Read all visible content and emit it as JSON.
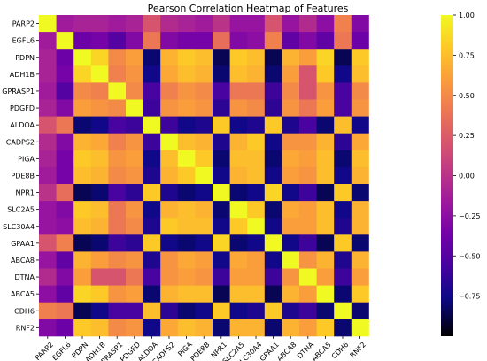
{
  "chart_data": {
    "type": "heatmap",
    "title": "Pearson Correlation Heatmap of Features",
    "xlabel": "",
    "ylabel": "",
    "labels": [
      "PARP2",
      "EGFL6",
      "PDPN",
      "ADH1B",
      "GPRASP1",
      "PDGFD",
      "ALDOA",
      "CADPS2",
      "PIGA",
      "PDE8B",
      "NPR1",
      "SLC2A5",
      "SLC30A4",
      "GPAA1",
      "ABCA8",
      "DTNA",
      "ABCA5",
      "CDH6",
      "RNF2"
    ],
    "colorbar": {
      "range": [
        -1.0,
        1.0
      ],
      "ticks": [
        "1.00",
        "0.75",
        "0.50",
        "0.25",
        "0.00",
        "−0.25",
        "−0.50",
        "−0.75"
      ],
      "tick_values": [
        1.0,
        0.75,
        0.5,
        0.25,
        0.0,
        -0.25,
        -0.5,
        -0.75
      ]
    },
    "colormap_stops": [
      "#0d0887",
      "#46039f",
      "#7201a8",
      "#9c179e",
      "#bd3786",
      "#d8576b",
      "#ed7953",
      "#fb9f3a",
      "#fdca26",
      "#f0f921"
    ],
    "colormap_low": "#000000",
    "matrix": [
      [
        1.0,
        -0.15,
        -0.1,
        -0.1,
        -0.15,
        -0.1,
        0.2,
        -0.05,
        -0.1,
        -0.15,
        0.0,
        -0.2,
        -0.2,
        0.2,
        -0.2,
        -0.05,
        -0.25,
        0.45,
        -0.3
      ],
      [
        -0.15,
        1.0,
        -0.4,
        -0.35,
        -0.5,
        -0.3,
        0.4,
        -0.3,
        -0.35,
        -0.35,
        0.35,
        -0.3,
        -0.25,
        0.45,
        -0.45,
        -0.3,
        -0.45,
        0.4,
        -0.4
      ],
      [
        -0.1,
        -0.4,
        1.0,
        0.85,
        0.5,
        0.6,
        -0.8,
        0.7,
        0.8,
        0.75,
        -0.85,
        0.8,
        0.75,
        -0.85,
        0.7,
        0.6,
        0.85,
        -0.85,
        0.8
      ],
      [
        -0.1,
        -0.35,
        0.85,
        1.0,
        0.45,
        0.55,
        -0.75,
        0.65,
        0.75,
        0.7,
        -0.8,
        0.75,
        0.7,
        -0.8,
        0.6,
        0.2,
        0.8,
        -0.75,
        0.75
      ],
      [
        -0.15,
        -0.5,
        0.5,
        0.45,
        1.0,
        0.5,
        -0.55,
        0.45,
        0.55,
        0.5,
        -0.55,
        0.4,
        0.4,
        -0.6,
        0.5,
        0.2,
        0.55,
        -0.55,
        0.5
      ],
      [
        -0.1,
        -0.3,
        0.6,
        0.55,
        0.5,
        1.0,
        -0.6,
        0.55,
        0.6,
        0.55,
        -0.65,
        0.55,
        0.5,
        -0.65,
        0.55,
        0.4,
        0.6,
        -0.55,
        0.55
      ],
      [
        0.2,
        0.4,
        -0.8,
        -0.75,
        -0.55,
        -0.6,
        1.0,
        -0.6,
        -0.75,
        -0.7,
        0.8,
        -0.75,
        -0.7,
        0.8,
        -0.7,
        -0.55,
        -0.8,
        0.75,
        -0.75
      ],
      [
        -0.05,
        -0.3,
        0.7,
        0.65,
        0.45,
        0.55,
        -0.6,
        1.0,
        0.75,
        0.7,
        -0.7,
        0.7,
        0.8,
        -0.75,
        0.55,
        0.55,
        0.7,
        -0.65,
        0.65
      ],
      [
        -0.1,
        -0.35,
        0.8,
        0.75,
        0.55,
        0.6,
        -0.75,
        0.75,
        1.0,
        0.8,
        -0.8,
        0.75,
        0.75,
        -0.8,
        0.65,
        0.6,
        0.75,
        -0.8,
        0.75
      ],
      [
        -0.15,
        -0.35,
        0.75,
        0.7,
        0.5,
        0.55,
        -0.7,
        0.7,
        0.8,
        1.0,
        -0.75,
        0.7,
        0.75,
        -0.75,
        0.6,
        0.55,
        0.75,
        -0.75,
        0.7
      ],
      [
        0.0,
        0.35,
        -0.85,
        -0.8,
        -0.55,
        -0.65,
        0.8,
        -0.7,
        -0.8,
        -0.75,
        1.0,
        -0.8,
        -0.75,
        0.85,
        -0.75,
        -0.6,
        -0.85,
        0.8,
        -0.8
      ],
      [
        -0.2,
        -0.3,
        0.8,
        0.75,
        0.4,
        0.55,
        -0.75,
        0.7,
        0.75,
        0.7,
        -0.8,
        1.0,
        0.8,
        -0.8,
        0.65,
        0.6,
        0.75,
        -0.75,
        0.7
      ],
      [
        -0.2,
        -0.25,
        0.75,
        0.7,
        0.4,
        0.5,
        -0.7,
        0.8,
        0.75,
        0.75,
        -0.75,
        0.8,
        1.0,
        -0.75,
        0.6,
        0.6,
        0.75,
        -0.7,
        0.7
      ],
      [
        0.2,
        0.45,
        -0.85,
        -0.8,
        -0.6,
        -0.65,
        0.8,
        -0.75,
        -0.8,
        -0.75,
        0.85,
        -0.8,
        -0.75,
        1.0,
        -0.75,
        -0.6,
        -0.85,
        0.8,
        -0.8
      ],
      [
        -0.2,
        -0.45,
        0.7,
        0.6,
        0.5,
        0.55,
        -0.7,
        0.55,
        0.65,
        0.6,
        -0.75,
        0.65,
        0.6,
        -0.75,
        1.0,
        0.55,
        0.7,
        -0.7,
        0.7
      ],
      [
        -0.05,
        -0.3,
        0.6,
        0.2,
        0.2,
        0.4,
        -0.55,
        0.55,
        0.6,
        0.55,
        -0.6,
        0.6,
        0.6,
        -0.6,
        0.55,
        1.0,
        0.6,
        -0.6,
        0.6
      ],
      [
        -0.25,
        -0.45,
        0.85,
        0.8,
        0.55,
        0.6,
        -0.8,
        0.7,
        0.75,
        0.75,
        -0.85,
        0.75,
        0.75,
        -0.85,
        0.7,
        0.6,
        1.0,
        -0.8,
        0.8
      ],
      [
        0.45,
        0.4,
        -0.85,
        -0.75,
        -0.55,
        -0.55,
        0.75,
        -0.65,
        -0.8,
        -0.75,
        0.8,
        -0.75,
        -0.7,
        0.8,
        -0.7,
        -0.6,
        -0.8,
        1.0,
        -0.8
      ],
      [
        -0.3,
        -0.4,
        0.8,
        0.75,
        0.5,
        0.55,
        -0.75,
        0.65,
        0.75,
        0.7,
        -0.8,
        0.7,
        0.7,
        -0.8,
        0.7,
        0.6,
        0.8,
        -0.8,
        1.0
      ]
    ]
  }
}
